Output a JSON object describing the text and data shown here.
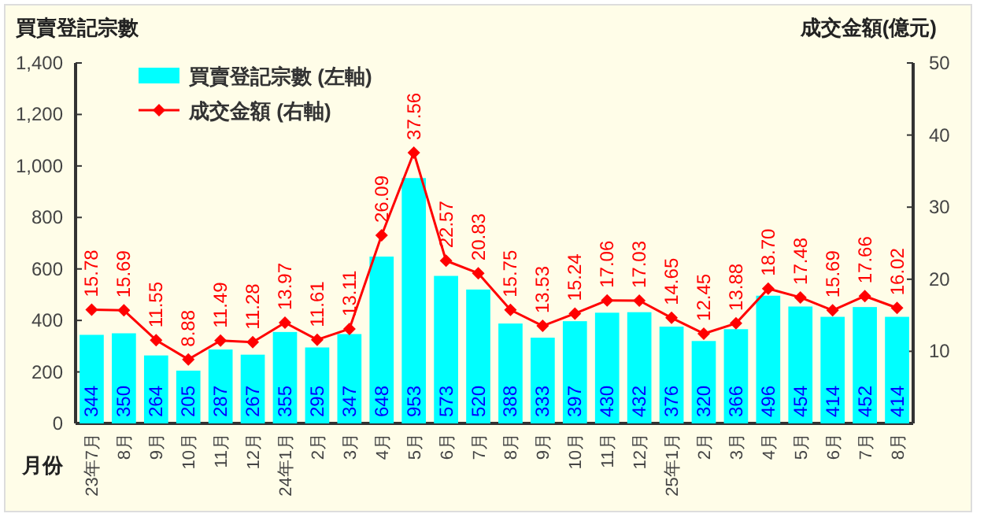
{
  "chart_data": {
    "type": "bar",
    "ylabel": "買賣登記宗數",
    "y2label": "成交金額(億元)",
    "xlabel": "月份",
    "categories": [
      "23年7月",
      "8月",
      "9月",
      "10月",
      "11月",
      "12月",
      "24年1月",
      "2月",
      "3月",
      "4月",
      "5月",
      "6月",
      "7月",
      "8月",
      "9月",
      "10月",
      "11月",
      "12月",
      "25年1月",
      "2月",
      "3月",
      "4月",
      "5月",
      "6月",
      "7月",
      "8月"
    ],
    "series": [
      {
        "name": "買賣登記宗數 (左軸)",
        "color": "#00ffff",
        "values": [
          344,
          350,
          264,
          205,
          287,
          267,
          355,
          295,
          347,
          648,
          953,
          573,
          520,
          388,
          333,
          397,
          430,
          432,
          376,
          320,
          366,
          496,
          454,
          414,
          452,
          414
        ]
      },
      {
        "name": "成交金額 (右軸)",
        "type": "line",
        "axis": "y2",
        "color": "#ff0000",
        "marker": "diamond",
        "values": [
          15.78,
          15.69,
          11.55,
          8.88,
          11.49,
          11.28,
          13.97,
          11.61,
          13.11,
          26.09,
          37.56,
          22.57,
          20.83,
          15.75,
          13.53,
          15.24,
          17.06,
          17.03,
          14.65,
          12.45,
          13.88,
          18.7,
          17.48,
          15.69,
          17.66,
          16.02
        ],
        "value_labels": [
          "15.78",
          "15.69",
          "11.55",
          "8.88",
          "11.49",
          "11.28",
          "13.97",
          "11.61",
          "13.11",
          "26.09",
          "37.56",
          "22.57",
          "20.83",
          "15.75",
          "13.53",
          "15.24",
          "17.06",
          "17.03",
          "14.65",
          "12.45",
          "13.88",
          "18.70",
          "17.48",
          "15.69",
          "17.66",
          "16.02"
        ]
      }
    ],
    "ylim": [
      0,
      1400
    ],
    "yticks": [
      {
        "value": 0,
        "label": "0"
      },
      {
        "value": 200,
        "label": "200"
      },
      {
        "value": 400,
        "label": "400"
      },
      {
        "value": 600,
        "label": "600"
      },
      {
        "value": 800,
        "label": "800"
      },
      {
        "value": 1000,
        "label": "1,000"
      },
      {
        "value": 1200,
        "label": "1,200"
      },
      {
        "value": 1400,
        "label": "1,400"
      }
    ],
    "y2lim": [
      0,
      50
    ],
    "y2ticks": [
      {
        "value": 0,
        "label": null
      },
      {
        "value": 10,
        "label": "10"
      },
      {
        "value": 20,
        "label": "20"
      },
      {
        "value": 30,
        "label": "30"
      },
      {
        "value": 40,
        "label": "40"
      },
      {
        "value": 50,
        "label": "50"
      }
    ],
    "data_labels": true,
    "legend": "top left",
    "grid": false
  }
}
